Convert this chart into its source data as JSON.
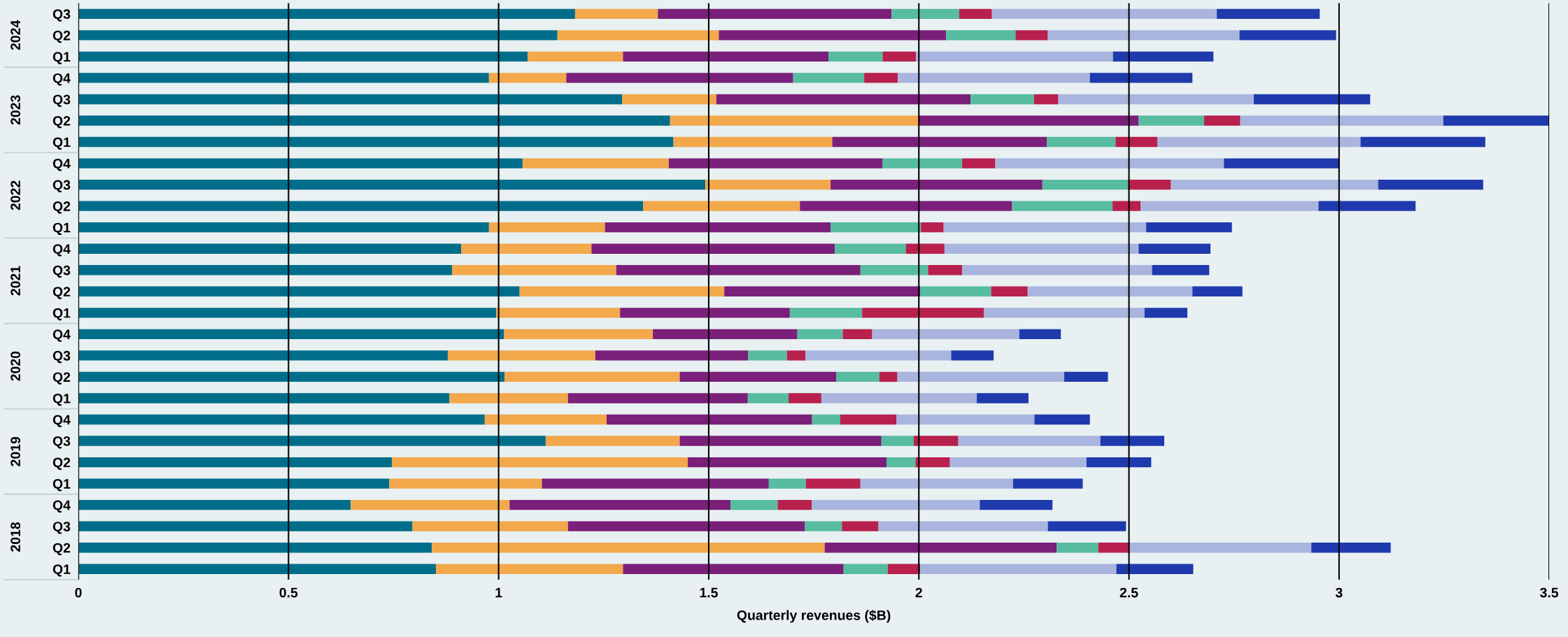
{
  "chart_data": {
    "type": "bar",
    "orientation": "horizontal",
    "stacked": true,
    "xlabel": "Quarterly revenues ($B)",
    "categories": [
      "Q3",
      "Q2",
      "Q1",
      "Q4",
      "Q3",
      "Q2",
      "Q1",
      "Q4",
      "Q3",
      "Q2",
      "Q1",
      "Q4",
      "Q3",
      "Q2",
      "Q1",
      "Q4",
      "Q3",
      "Q2",
      "Q1",
      "Q4",
      "Q3",
      "Q2",
      "Q1",
      "Q4",
      "Q3",
      "Q2",
      "Q1"
    ],
    "annotations": [
      "2024",
      "2023",
      "2022",
      "2021",
      "2020",
      "2019",
      "2018"
    ],
    "xlim": [
      0,
      3.5
    ],
    "xticks": [
      0,
      0.5,
      1,
      1.5,
      2,
      2.5,
      3,
      3.5
    ],
    "grid": "x",
    "legend": false,
    "series": [
      {
        "color": "#006e8a",
        "values": [
          1.182,
          1.14,
          1.069,
          0.977,
          1.294,
          1.408,
          1.416,
          1.057,
          1.492,
          1.344,
          0.977,
          0.911,
          0.889,
          1.05,
          0.994,
          1.013,
          0.879,
          1.014,
          0.883,
          0.967,
          1.112,
          0.746,
          0.74,
          0.648,
          0.795,
          0.841,
          0.851
        ]
      },
      {
        "color": "#f2a84b",
        "values": [
          0.197,
          0.384,
          0.227,
          0.184,
          0.224,
          0.592,
          0.378,
          0.348,
          0.298,
          0.373,
          0.276,
          0.31,
          0.391,
          0.487,
          0.295,
          0.354,
          0.351,
          0.417,
          0.282,
          0.29,
          0.319,
          0.704,
          0.363,
          0.378,
          0.37,
          0.935,
          0.445
        ]
      },
      {
        "color": "#7a1f7a",
        "values": [
          0.556,
          0.541,
          0.489,
          0.54,
          0.605,
          0.523,
          0.511,
          0.509,
          0.504,
          0.505,
          0.537,
          0.579,
          0.581,
          0.466,
          0.404,
          0.344,
          0.364,
          0.373,
          0.428,
          0.489,
          0.48,
          0.473,
          0.54,
          0.526,
          0.564,
          0.552,
          0.525
        ]
      },
      {
        "color": "#57bca0",
        "values": [
          0.161,
          0.165,
          0.129,
          0.169,
          0.151,
          0.156,
          0.163,
          0.189,
          0.204,
          0.239,
          0.215,
          0.169,
          0.161,
          0.169,
          0.172,
          0.108,
          0.092,
          0.102,
          0.097,
          0.067,
          0.077,
          0.069,
          0.088,
          0.112,
          0.088,
          0.099,
          0.105
        ]
      },
      {
        "color": "#b8204e",
        "values": [
          0.078,
          0.077,
          0.079,
          0.08,
          0.058,
          0.086,
          0.1,
          0.079,
          0.102,
          0.067,
          0.054,
          0.092,
          0.081,
          0.087,
          0.29,
          0.07,
          0.044,
          0.043,
          0.078,
          0.134,
          0.106,
          0.082,
          0.13,
          0.081,
          0.087,
          0.075,
          0.077
        ]
      },
      {
        "color": "#a9b5df",
        "values": [
          0.535,
          0.456,
          0.469,
          0.457,
          0.465,
          0.483,
          0.483,
          0.544,
          0.493,
          0.423,
          0.482,
          0.462,
          0.452,
          0.392,
          0.382,
          0.35,
          0.347,
          0.397,
          0.37,
          0.328,
          0.338,
          0.325,
          0.363,
          0.4,
          0.403,
          0.432,
          0.467
        ]
      },
      {
        "color": "#1f3aad",
        "values": [
          0.245,
          0.23,
          0.239,
          0.244,
          0.277,
          0.252,
          0.297,
          0.275,
          0.25,
          0.231,
          0.204,
          0.171,
          0.136,
          0.119,
          0.102,
          0.099,
          0.101,
          0.104,
          0.123,
          0.132,
          0.152,
          0.154,
          0.166,
          0.173,
          0.186,
          0.189,
          0.183
        ]
      }
    ]
  }
}
